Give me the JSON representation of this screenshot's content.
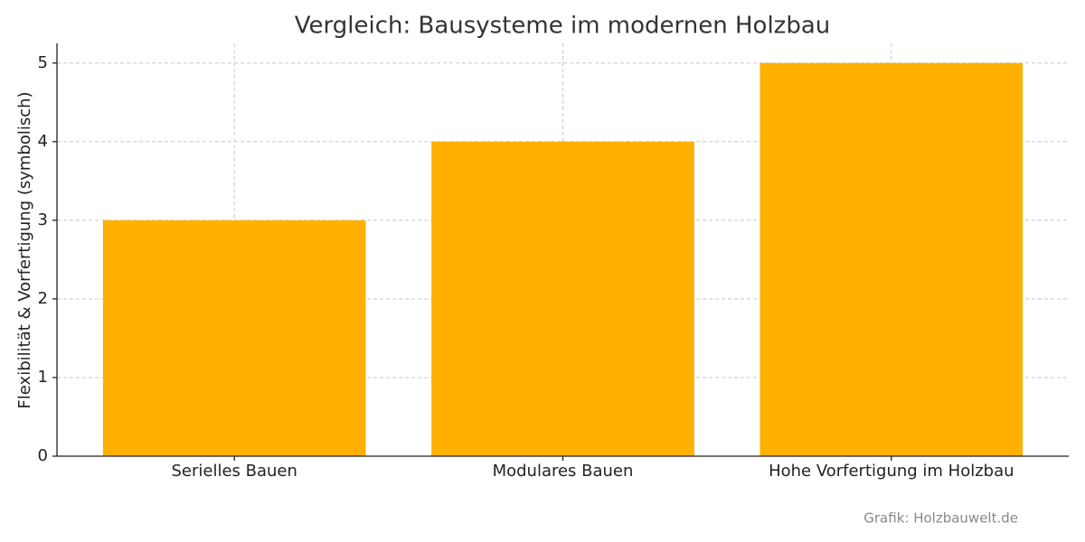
{
  "chart_data": {
    "type": "bar",
    "title": "Vergleich: Bausysteme im modernen Holzbau",
    "y_label": "Flexibilität & Vorfertigung (symbolisch)",
    "categories": [
      "Serielles Bauen",
      "Modulares Bauen",
      "Hohe Vorfertigung im Holzbau"
    ],
    "values": [
      3,
      4,
      5
    ],
    "color": "#ffb000",
    "ylim": [
      0,
      5.25
    ],
    "yticks": [
      0,
      1,
      2,
      3,
      4,
      5
    ],
    "grid": true,
    "annotation": "Grafik: Holzbauwelt.de"
  }
}
